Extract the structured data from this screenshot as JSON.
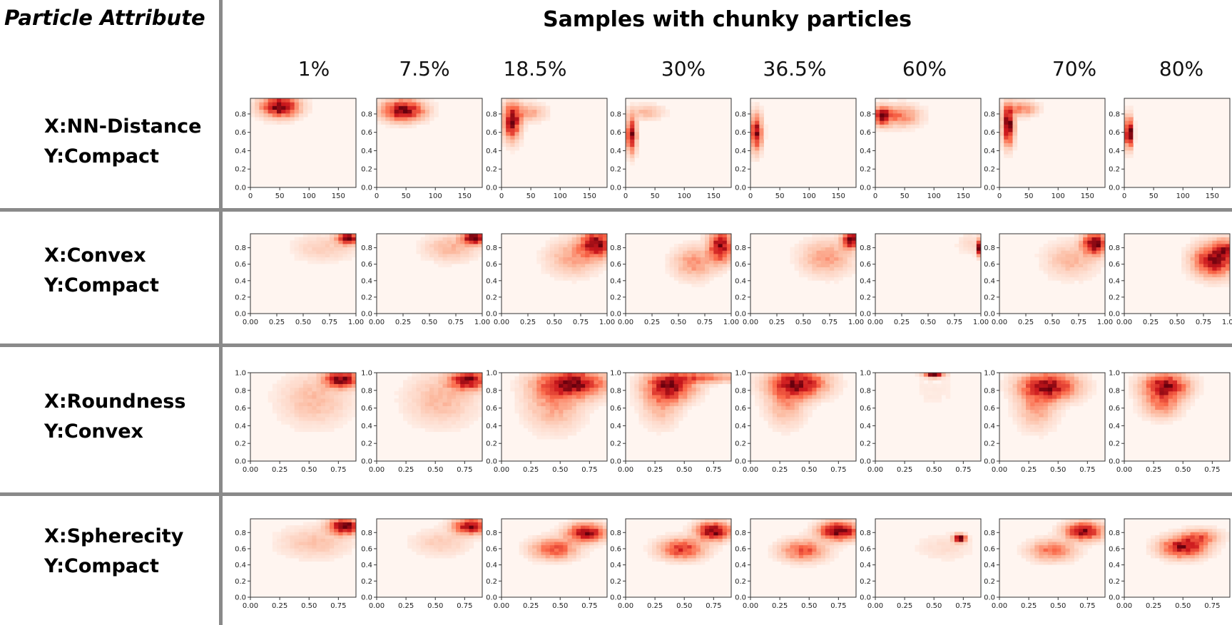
{
  "header": {
    "attribute_title": "Particle Attribute",
    "main_title": "Samples with chunky particles"
  },
  "columns": [
    "1%",
    "7.5%",
    "18.5%",
    "30%",
    "36.5%",
    "60%",
    "70%",
    "80%"
  ],
  "rows": [
    {
      "xlabel": "X:NN-Distance",
      "ylabel": "Y:Compact"
    },
    {
      "xlabel": "X:Convex",
      "ylabel": "Y:Compact"
    },
    {
      "xlabel": "X:Roundness",
      "ylabel": "Y:Convex"
    },
    {
      "xlabel": "X:Spherecity",
      "ylabel": "Y:Compact"
    }
  ],
  "chart_data": [
    {
      "type": "heatmap",
      "colormap": "Reds",
      "xlim": [
        0,
        180
      ],
      "ylim": [
        0,
        0.97
      ],
      "xticks": [
        "0",
        "50",
        "100",
        "150"
      ],
      "xtick_values": [
        0,
        50,
        100,
        150
      ],
      "yticks": [
        "0.0",
        "0.2",
        "0.4",
        "0.6",
        "0.8"
      ],
      "ytick_values": [
        0,
        0.2,
        0.4,
        0.6,
        0.8
      ],
      "density_blobs": [
        [
          {
            "x": 50,
            "y": 0.88,
            "sx": 20,
            "sy": 0.07,
            "w": 1
          }
        ],
        [
          {
            "x": 45,
            "y": 0.84,
            "sx": 22,
            "sy": 0.07,
            "w": 1
          }
        ],
        [
          {
            "x": 18,
            "y": 0.72,
            "sx": 9,
            "sy": 0.12,
            "w": 1
          },
          {
            "x": 45,
            "y": 0.82,
            "sx": 18,
            "sy": 0.06,
            "w": 0.3
          }
        ],
        [
          {
            "x": 10,
            "y": 0.58,
            "sx": 5,
            "sy": 0.12,
            "w": 1
          },
          {
            "x": 35,
            "y": 0.82,
            "sx": 18,
            "sy": 0.05,
            "w": 0.2
          }
        ],
        [
          {
            "x": 10,
            "y": 0.6,
            "sx": 6,
            "sy": 0.12,
            "w": 1
          }
        ],
        [
          {
            "x": 12,
            "y": 0.78,
            "sx": 8,
            "sy": 0.06,
            "w": 1
          },
          {
            "x": 40,
            "y": 0.78,
            "sx": 22,
            "sy": 0.07,
            "w": 0.45
          }
        ],
        [
          {
            "x": 15,
            "y": 0.68,
            "sx": 6,
            "sy": 0.13,
            "w": 1
          },
          {
            "x": 38,
            "y": 0.86,
            "sx": 16,
            "sy": 0.05,
            "w": 0.35
          }
        ],
        [
          {
            "x": 8,
            "y": 0.6,
            "sx": 4,
            "sy": 0.1,
            "w": 1
          }
        ]
      ]
    },
    {
      "type": "heatmap",
      "colormap": "Reds",
      "xlim": [
        0,
        1
      ],
      "ylim": [
        0,
        0.97
      ],
      "xticks": [
        "0.00",
        "0.25",
        "0.50",
        "0.75",
        "1.00"
      ],
      "xtick_values": [
        0,
        0.25,
        0.5,
        0.75,
        1.0
      ],
      "yticks": [
        "0.0",
        "0.2",
        "0.4",
        "0.6",
        "0.8"
      ],
      "ytick_values": [
        0,
        0.2,
        0.4,
        0.6,
        0.8
      ],
      "density_blobs": [
        [
          {
            "x": 0.93,
            "y": 0.92,
            "sx": 0.07,
            "sy": 0.05,
            "w": 1
          },
          {
            "x": 0.7,
            "y": 0.8,
            "sx": 0.18,
            "sy": 0.1,
            "w": 0.15
          }
        ],
        [
          {
            "x": 0.92,
            "y": 0.92,
            "sx": 0.07,
            "sy": 0.05,
            "w": 1
          },
          {
            "x": 0.7,
            "y": 0.8,
            "sx": 0.15,
            "sy": 0.1,
            "w": 0.2
          }
        ],
        [
          {
            "x": 0.9,
            "y": 0.85,
            "sx": 0.1,
            "sy": 0.1,
            "w": 1
          },
          {
            "x": 0.68,
            "y": 0.68,
            "sx": 0.15,
            "sy": 0.13,
            "w": 0.3
          }
        ],
        [
          {
            "x": 0.9,
            "y": 0.82,
            "sx": 0.07,
            "sy": 0.12,
            "w": 1
          },
          {
            "x": 0.65,
            "y": 0.62,
            "sx": 0.12,
            "sy": 0.12,
            "w": 0.35
          }
        ],
        [
          {
            "x": 0.95,
            "y": 0.9,
            "sx": 0.05,
            "sy": 0.07,
            "w": 1
          },
          {
            "x": 0.72,
            "y": 0.68,
            "sx": 0.15,
            "sy": 0.13,
            "w": 0.3
          }
        ],
        [
          {
            "x": 0.99,
            "y": 0.8,
            "sx": 0.02,
            "sy": 0.06,
            "w": 1
          },
          {
            "x": 0.9,
            "y": 0.85,
            "sx": 0.08,
            "sy": 0.08,
            "w": 0.08
          }
        ],
        [
          {
            "x": 0.9,
            "y": 0.85,
            "sx": 0.07,
            "sy": 0.08,
            "w": 1
          },
          {
            "x": 0.68,
            "y": 0.65,
            "sx": 0.15,
            "sy": 0.13,
            "w": 0.2
          }
        ],
        [
          {
            "x": 0.85,
            "y": 0.65,
            "sx": 0.12,
            "sy": 0.12,
            "w": 1
          },
          {
            "x": 0.95,
            "y": 0.78,
            "sx": 0.06,
            "sy": 0.08,
            "w": 0.6
          }
        ]
      ]
    },
    {
      "type": "heatmap",
      "colormap": "Reds",
      "xlim": [
        0,
        0.9
      ],
      "ylim": [
        0,
        1.0
      ],
      "xticks": [
        "0.00",
        "0.25",
        "0.50",
        "0.75"
      ],
      "xtick_values": [
        0,
        0.25,
        0.5,
        0.75
      ],
      "yticks": [
        "0.0",
        "0.2",
        "0.4",
        "0.6",
        "0.8",
        "1.0"
      ],
      "ytick_values": [
        0,
        0.2,
        0.4,
        0.6,
        0.8,
        1.0
      ],
      "density_blobs": [
        [
          {
            "x": 0.78,
            "y": 0.93,
            "sx": 0.09,
            "sy": 0.06,
            "w": 1
          },
          {
            "x": 0.55,
            "y": 0.7,
            "sx": 0.18,
            "sy": 0.18,
            "w": 0.2
          }
        ],
        [
          {
            "x": 0.78,
            "y": 0.92,
            "sx": 0.1,
            "sy": 0.07,
            "w": 1
          },
          {
            "x": 0.55,
            "y": 0.7,
            "sx": 0.18,
            "sy": 0.18,
            "w": 0.22
          }
        ],
        [
          {
            "x": 0.6,
            "y": 0.88,
            "sx": 0.18,
            "sy": 0.1,
            "w": 1
          },
          {
            "x": 0.45,
            "y": 0.65,
            "sx": 0.15,
            "sy": 0.18,
            "w": 0.3
          }
        ],
        [
          {
            "x": 0.38,
            "y": 0.85,
            "sx": 0.13,
            "sy": 0.1,
            "w": 1
          },
          {
            "x": 0.65,
            "y": 0.95,
            "sx": 0.2,
            "sy": 0.04,
            "w": 0.5
          },
          {
            "x": 0.3,
            "y": 0.65,
            "sx": 0.1,
            "sy": 0.15,
            "w": 0.3
          }
        ],
        [
          {
            "x": 0.4,
            "y": 0.88,
            "sx": 0.15,
            "sy": 0.1,
            "w": 1
          },
          {
            "x": 0.3,
            "y": 0.65,
            "sx": 0.1,
            "sy": 0.15,
            "w": 0.3
          }
        ],
        [
          {
            "x": 0.5,
            "y": 0.98,
            "sx": 0.05,
            "sy": 0.02,
            "w": 1
          },
          {
            "x": 0.5,
            "y": 0.8,
            "sx": 0.15,
            "sy": 0.15,
            "w": 0.03
          }
        ],
        [
          {
            "x": 0.42,
            "y": 0.85,
            "sx": 0.15,
            "sy": 0.1,
            "w": 1
          },
          {
            "x": 0.32,
            "y": 0.62,
            "sx": 0.1,
            "sy": 0.15,
            "w": 0.35
          }
        ],
        [
          {
            "x": 0.35,
            "y": 0.85,
            "sx": 0.12,
            "sy": 0.09,
            "w": 1
          },
          {
            "x": 0.32,
            "y": 0.65,
            "sx": 0.1,
            "sy": 0.1,
            "w": 0.4
          }
        ]
      ]
    },
    {
      "type": "heatmap",
      "colormap": "Reds",
      "xlim": [
        0,
        0.9
      ],
      "ylim": [
        0,
        0.97
      ],
      "xticks": [
        "0.00",
        "0.25",
        "0.50",
        "0.75"
      ],
      "xtick_values": [
        0,
        0.25,
        0.5,
        0.75
      ],
      "yticks": [
        "0.0",
        "0.2",
        "0.4",
        "0.6",
        "0.8"
      ],
      "ytick_values": [
        0,
        0.2,
        0.4,
        0.6,
        0.8
      ],
      "density_blobs": [
        [
          {
            "x": 0.8,
            "y": 0.88,
            "sx": 0.08,
            "sy": 0.06,
            "w": 1
          },
          {
            "x": 0.55,
            "y": 0.68,
            "sx": 0.18,
            "sy": 0.12,
            "w": 0.15
          }
        ],
        [
          {
            "x": 0.8,
            "y": 0.88,
            "sx": 0.09,
            "sy": 0.06,
            "w": 1
          },
          {
            "x": 0.55,
            "y": 0.68,
            "sx": 0.15,
            "sy": 0.1,
            "w": 0.15
          }
        ],
        [
          {
            "x": 0.72,
            "y": 0.8,
            "sx": 0.1,
            "sy": 0.07,
            "w": 1
          },
          {
            "x": 0.45,
            "y": 0.6,
            "sx": 0.12,
            "sy": 0.08,
            "w": 0.6
          }
        ],
        [
          {
            "x": 0.75,
            "y": 0.82,
            "sx": 0.09,
            "sy": 0.07,
            "w": 1
          },
          {
            "x": 0.48,
            "y": 0.6,
            "sx": 0.12,
            "sy": 0.08,
            "w": 0.65
          }
        ],
        [
          {
            "x": 0.75,
            "y": 0.82,
            "sx": 0.1,
            "sy": 0.07,
            "w": 1
          },
          {
            "x": 0.45,
            "y": 0.58,
            "sx": 0.12,
            "sy": 0.08,
            "w": 0.5
          }
        ],
        [
          {
            "x": 0.72,
            "y": 0.73,
            "sx": 0.03,
            "sy": 0.03,
            "w": 1
          },
          {
            "x": 0.6,
            "y": 0.62,
            "sx": 0.15,
            "sy": 0.1,
            "w": 0.05
          }
        ],
        [
          {
            "x": 0.72,
            "y": 0.82,
            "sx": 0.1,
            "sy": 0.07,
            "w": 1
          },
          {
            "x": 0.45,
            "y": 0.58,
            "sx": 0.12,
            "sy": 0.08,
            "w": 0.5
          }
        ],
        [
          {
            "x": 0.5,
            "y": 0.62,
            "sx": 0.12,
            "sy": 0.08,
            "w": 1
          },
          {
            "x": 0.65,
            "y": 0.75,
            "sx": 0.1,
            "sy": 0.06,
            "w": 0.5
          }
        ]
      ]
    }
  ]
}
